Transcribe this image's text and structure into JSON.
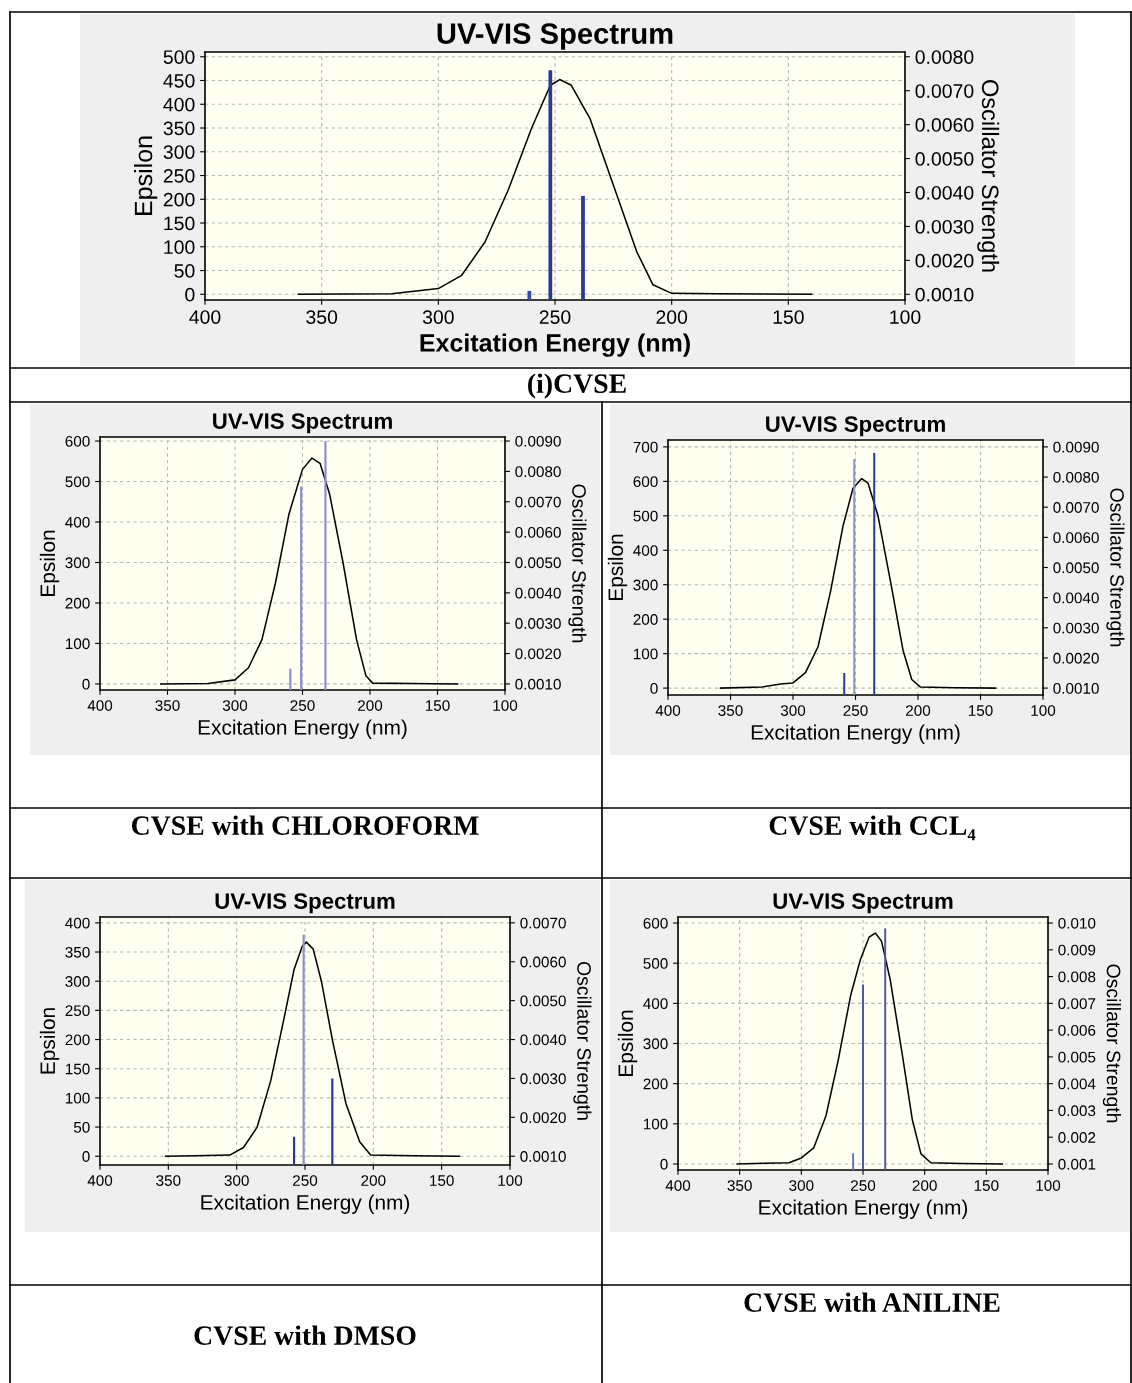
{
  "chart_data": [
    {
      "type": "line",
      "title": "UV-VIS Spectrum",
      "xlabel": "Excitation Energy (nm)",
      "ylabel": "Epsilon",
      "y2label": "Oscillator Strength",
      "annotations": [
        "(i)CVSE"
      ],
      "grid": true,
      "xlim": [
        400,
        100
      ],
      "xticks": [
        400,
        350,
        300,
        250,
        200,
        150,
        100
      ],
      "ylim": [
        -12,
        510
      ],
      "yticks": [
        0,
        50,
        100,
        150,
        200,
        250,
        300,
        350,
        400,
        450,
        500
      ],
      "y2lim": [
        0.000832,
        0.00814
      ],
      "y2ticks": [
        {
          "value": 0.001,
          "label": "0.0010"
        },
        {
          "value": 0.002,
          "label": "0.0020"
        },
        {
          "value": 0.003,
          "label": "0.0030"
        },
        {
          "value": 0.004,
          "label": "0.0040"
        },
        {
          "value": 0.005,
          "label": "0.0050"
        },
        {
          "value": 0.006,
          "label": "0.0060"
        },
        {
          "value": 0.007,
          "label": "0.0070"
        },
        {
          "value": 0.008,
          "label": "0.0080"
        }
      ],
      "series": [
        {
          "color": "#000000",
          "x": [
            360,
            320,
            300,
            290,
            280,
            270,
            260,
            252,
            248,
            243,
            235,
            225,
            215,
            208,
            200,
            180,
            140
          ],
          "values": [
            0,
            1,
            12,
            40,
            110,
            220,
            350,
            440,
            452,
            440,
            370,
            230,
            90,
            20,
            2,
            1,
            0
          ]
        },
        {
          "type": "bar",
          "axis": "y2",
          "x": [
            261,
            252,
            238
          ],
          "values": [
            0.0011,
            0.0076,
            0.0039
          ],
          "colors": [
            "#3a4a9c",
            "#2a3a8c",
            "#2a3a8c"
          ]
        }
      ]
    },
    {
      "type": "line",
      "title": "UV-VIS Spectrum",
      "xlabel": "Excitation Energy (nm)",
      "ylabel": "Epsilon",
      "y2label": "Oscillator Strength",
      "annotations": [
        "CVSE with CHLOROFORM"
      ],
      "grid": true,
      "xlim": [
        400,
        100
      ],
      "xticks": [
        400,
        350,
        300,
        250,
        200,
        150,
        100
      ],
      "ylim": [
        -15,
        610
      ],
      "yticks": [
        0,
        100,
        200,
        300,
        400,
        500,
        600
      ],
      "y2lim": [
        0.0008,
        0.009133
      ],
      "y2ticks": [
        {
          "value": 0.001,
          "label": "0.0010"
        },
        {
          "value": 0.002,
          "label": "0.0020"
        },
        {
          "value": 0.003,
          "label": "0.0030"
        },
        {
          "value": 0.004,
          "label": "0.0040"
        },
        {
          "value": 0.005,
          "label": "0.0050"
        },
        {
          "value": 0.006,
          "label": "0.0060"
        },
        {
          "value": 0.007,
          "label": "0.0070"
        },
        {
          "value": 0.008,
          "label": "0.0080"
        },
        {
          "value": 0.009,
          "label": "0.0090"
        }
      ],
      "series": [
        {
          "color": "#000000",
          "x": [
            355,
            320,
            300,
            290,
            280,
            270,
            260,
            250,
            243,
            237,
            230,
            220,
            210,
            203,
            198,
            170,
            135
          ],
          "values": [
            0,
            1,
            10,
            40,
            110,
            250,
            420,
            530,
            558,
            545,
            470,
            300,
            110,
            20,
            2,
            1,
            0
          ]
        },
        {
          "type": "bar",
          "axis": "y2",
          "x": [
            259,
            251,
            233
          ],
          "values": [
            0.0015,
            0.0075,
            0.009
          ],
          "colors": [
            "#8a8fcc",
            "#8a8fcc",
            "#8a8fcc"
          ]
        }
      ]
    },
    {
      "type": "line",
      "title": "UV-VIS Spectrum",
      "xlabel": "Excitation Energy (nm)",
      "ylabel": "Epsilon",
      "y2label": "Oscillator Strength",
      "annotations": [
        "CVSE with CCL₄"
      ],
      "grid": true,
      "xlim": [
        400,
        100
      ],
      "xticks": [
        400,
        350,
        300,
        250,
        200,
        150,
        100
      ],
      "ylim": [
        -20,
        720
      ],
      "yticks": [
        0,
        100,
        200,
        300,
        400,
        500,
        600,
        700
      ],
      "y2lim": [
        0.000771,
        0.009229
      ],
      "y2ticks": [
        {
          "value": 0.001,
          "label": "0.0010"
        },
        {
          "value": 0.002,
          "label": "0.0020"
        },
        {
          "value": 0.003,
          "label": "0.0030"
        },
        {
          "value": 0.004,
          "label": "0.0040"
        },
        {
          "value": 0.005,
          "label": "0.0050"
        },
        {
          "value": 0.006,
          "label": "0.0060"
        },
        {
          "value": 0.007,
          "label": "0.0070"
        },
        {
          "value": 0.008,
          "label": "0.0080"
        },
        {
          "value": 0.009,
          "label": "0.0090"
        }
      ],
      "series": [
        {
          "color": "#000000",
          "x": [
            358,
            325,
            310,
            300,
            290,
            280,
            270,
            260,
            252,
            245,
            240,
            232,
            222,
            212,
            205,
            198,
            170,
            138
          ],
          "values": [
            0,
            3,
            12,
            15,
            45,
            120,
            280,
            470,
            580,
            608,
            595,
            500,
            310,
            110,
            25,
            3,
            1,
            0
          ]
        },
        {
          "type": "bar",
          "axis": "y2",
          "x": [
            259,
            251,
            235
          ],
          "values": [
            0.0015,
            0.0086,
            0.0088
          ],
          "colors": [
            "#2a3a8c",
            "#8a95c0",
            "#2a3a8c"
          ]
        }
      ]
    },
    {
      "type": "line",
      "title": "UV-VIS Spectrum",
      "xlabel": "Excitation Energy (nm)",
      "ylabel": "Epsilon",
      "y2label": "Oscillator Strength",
      "annotations": [
        "CVSE with DMSO"
      ],
      "grid": true,
      "xlim": [
        400,
        100
      ],
      "xticks": [
        400,
        350,
        300,
        250,
        200,
        150,
        100
      ],
      "ylim": [
        -15,
        410
      ],
      "yticks": [
        0,
        50,
        100,
        150,
        200,
        250,
        300,
        350,
        400
      ],
      "y2lim": [
        0.000775,
        0.00715
      ],
      "y2ticks": [
        {
          "value": 0.001,
          "label": "0.0010"
        },
        {
          "value": 0.002,
          "label": "0.0020"
        },
        {
          "value": 0.003,
          "label": "0.0030"
        },
        {
          "value": 0.004,
          "label": "0.0040"
        },
        {
          "value": 0.005,
          "label": "0.0050"
        },
        {
          "value": 0.006,
          "label": "0.0060"
        },
        {
          "value": 0.007,
          "label": "0.0070"
        }
      ],
      "series": [
        {
          "color": "#000000",
          "x": [
            352,
            330,
            305,
            295,
            285,
            275,
            265,
            258,
            252,
            249,
            244,
            238,
            230,
            220,
            210,
            202,
            170,
            137
          ],
          "values": [
            0,
            1,
            2,
            15,
            50,
            130,
            240,
            320,
            360,
            367,
            355,
            300,
            200,
            90,
            25,
            2,
            1,
            0
          ]
        },
        {
          "type": "bar",
          "axis": "y2",
          "x": [
            258,
            251,
            230
          ],
          "values": [
            0.0015,
            0.0067,
            0.003
          ],
          "colors": [
            "#2a3a8c",
            "#8a95c0",
            "#2a3a8c"
          ]
        }
      ]
    },
    {
      "type": "line",
      "title": "UV-VIS Spectrum",
      "xlabel": "Excitation Energy (nm)",
      "ylabel": "Epsilon",
      "y2label": "Oscillator Strength",
      "annotations": [
        "CVSE with ANILINE"
      ],
      "grid": true,
      "xlim": [
        400,
        100
      ],
      "xticks": [
        400,
        350,
        300,
        250,
        200,
        150,
        100
      ],
      "ylim": [
        -15,
        615
      ],
      "yticks": [
        0,
        100,
        200,
        300,
        400,
        500,
        600
      ],
      "y2lim": [
        0.000775,
        0.010225
      ],
      "y2ticks": [
        {
          "value": 0.001,
          "label": "0.001"
        },
        {
          "value": 0.002,
          "label": "0.002"
        },
        {
          "value": 0.003,
          "label": "0.003"
        },
        {
          "value": 0.004,
          "label": "0.004"
        },
        {
          "value": 0.005,
          "label": "0.005"
        },
        {
          "value": 0.006,
          "label": "0.006"
        },
        {
          "value": 0.007,
          "label": "0.007"
        },
        {
          "value": 0.008,
          "label": "0.008"
        },
        {
          "value": 0.009,
          "label": "0.009"
        },
        {
          "value": 0.01,
          "label": "0.010"
        }
      ],
      "series": [
        {
          "color": "#000000",
          "x": [
            352,
            330,
            310,
            300,
            290,
            280,
            270,
            260,
            252,
            245,
            240,
            235,
            228,
            218,
            210,
            203,
            195,
            170,
            137
          ],
          "values": [
            0,
            2,
            3,
            15,
            40,
            120,
            260,
            420,
            510,
            565,
            575,
            555,
            460,
            270,
            110,
            25,
            3,
            1,
            0
          ]
        },
        {
          "type": "bar",
          "axis": "y2",
          "x": [
            258,
            250,
            232
          ],
          "values": [
            0.0014,
            0.0077,
            0.0098
          ],
          "colors": [
            "#6a75b0",
            "#4a5a9c",
            "#4a5a9c"
          ]
        }
      ]
    }
  ]
}
